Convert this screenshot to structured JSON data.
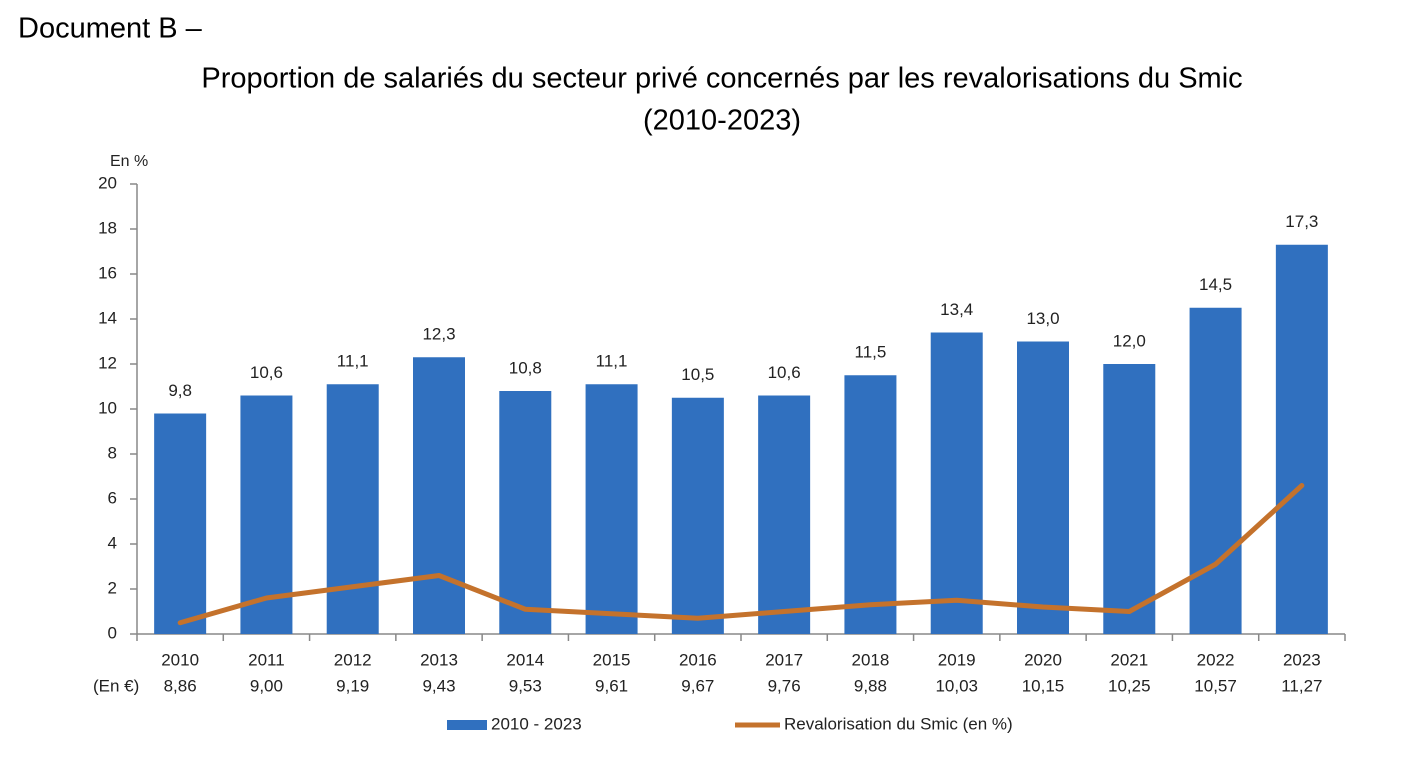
{
  "header": "Document B –",
  "chart_data": {
    "type": "combo",
    "title": "Proportion de salariés du secteur privé concernés par les revalorisations du Smic",
    "subtitle": "(2010-2023)",
    "y_label": "En %",
    "categories": [
      "2010",
      "2011",
      "2012",
      "2013",
      "2014",
      "2015",
      "2016",
      "2017",
      "2018",
      "2019",
      "2020",
      "2021",
      "2022",
      "2023"
    ],
    "x_sublabel_title": "(En €)",
    "x_sublabels": [
      "8,86",
      "9,00",
      "9,19",
      "9,43",
      "9,53",
      "9,61",
      "9,67",
      "9,76",
      "9,88",
      "10,03",
      "10,15",
      "10,25",
      "10,57",
      "11,27"
    ],
    "series": [
      {
        "name": "2010 - 2023",
        "type": "bar",
        "color": "#3070bf",
        "values": [
          9.8,
          10.6,
          11.1,
          12.3,
          10.8,
          11.1,
          10.5,
          10.6,
          11.5,
          13.4,
          13.0,
          12.0,
          14.5,
          17.3
        ],
        "value_labels": [
          "9,8",
          "10,6",
          "11,1",
          "12,3",
          "10,8",
          "11,1",
          "10,5",
          "10,6",
          "11,5",
          "13,4",
          "13,0",
          "12,0",
          "14,5",
          "17,3"
        ]
      },
      {
        "name": "Revalorisation du Smic (en %)",
        "type": "line",
        "color": "#c4722c",
        "values": [
          0.5,
          1.6,
          2.1,
          2.6,
          1.1,
          0.9,
          0.7,
          1.0,
          1.3,
          1.5,
          1.2,
          1.0,
          3.1,
          6.6
        ]
      }
    ],
    "ylim": [
      0,
      20
    ],
    "yticks": [
      0,
      2,
      4,
      6,
      8,
      10,
      12,
      14,
      16,
      18,
      20
    ],
    "grid": false,
    "legend": "bottom"
  }
}
